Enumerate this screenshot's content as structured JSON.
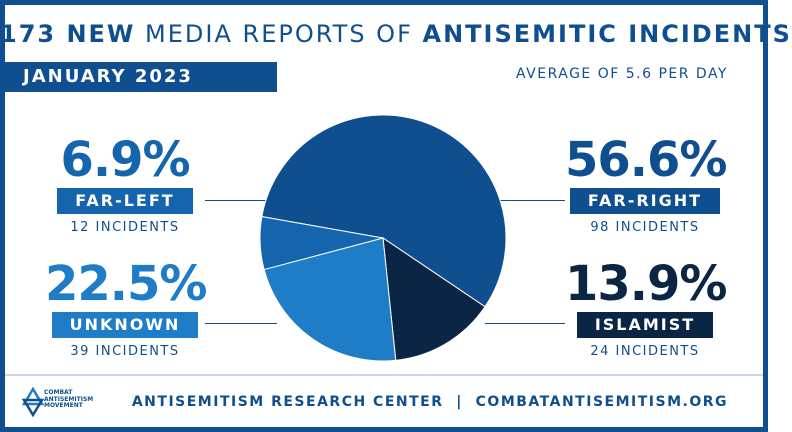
{
  "header": {
    "title_bold_1": "173 NEW",
    "title_normal": "MEDIA REPORTS OF",
    "title_bold_2": "ANTISEMITIC INCIDENTS",
    "month": "JANUARY 2023",
    "average": "AVERAGE OF 5.6 PER DAY"
  },
  "chart_data": {
    "type": "pie",
    "categories": [
      "FAR-RIGHT",
      "ISLAMIST",
      "UNKNOWN",
      "FAR-LEFT"
    ],
    "percent_labels": [
      "56.6%",
      "13.9%",
      "22.5%",
      "6.9%"
    ],
    "values": [
      56.6,
      13.9,
      22.5,
      6.9
    ],
    "incidents": [
      98,
      24,
      39,
      12
    ],
    "incident_labels": [
      "98 INCIDENTS",
      "24 INCIDENTS",
      "39 INCIDENTS",
      "12 INCIDENTS"
    ],
    "colors": [
      "#0f4f8f",
      "#0b2545",
      "#1f7cc6",
      "#1565ae"
    ],
    "label_colors": [
      "#0f4f8f",
      "#0b2545",
      "#1f7cc6",
      "#1565ae"
    ]
  },
  "footer": {
    "center_name": "ANTISEMITISM RESEARCH CENTER",
    "separator": "|",
    "website": "COMBATANTISEMITISM.ORG",
    "logo_text": "COMBAT ANTISEMITISM MOVEMENT"
  }
}
